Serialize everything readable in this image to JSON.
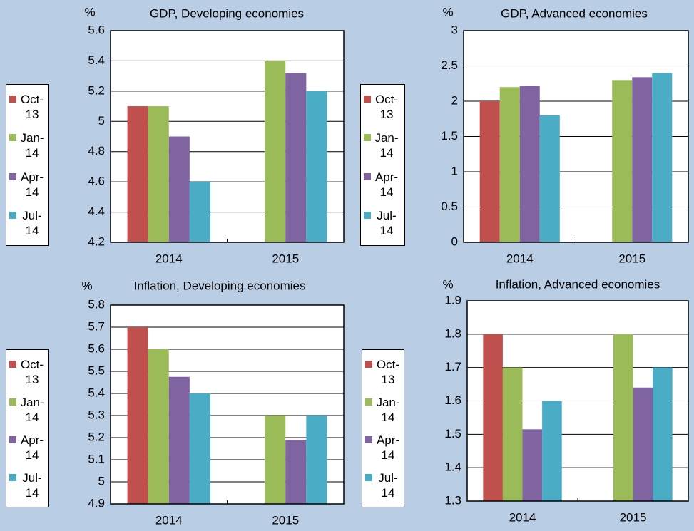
{
  "chart_data": [
    {
      "type": "bar",
      "title": "GDP, Developing economies",
      "ylabel": "%",
      "categories": [
        "2014",
        "2015"
      ],
      "series": [
        {
          "name": "Oct-13",
          "color": "#c0504d",
          "values": [
            5.1,
            null
          ]
        },
        {
          "name": "Jan-14",
          "color": "#9bbb59",
          "values": [
            5.1,
            5.4
          ]
        },
        {
          "name": "Apr-14",
          "color": "#8064a2",
          "values": [
            4.9,
            5.32
          ]
        },
        {
          "name": "Jul-14",
          "color": "#4bacc6",
          "values": [
            4.6,
            5.2
          ]
        }
      ],
      "ylim": [
        4.2,
        5.6
      ],
      "yticks": [
        4.2,
        4.4,
        4.6,
        4.8,
        5,
        5.2,
        5.4,
        5.6
      ],
      "grid": true,
      "legend": "left"
    },
    {
      "type": "bar",
      "title": "GDP, Advanced economies",
      "ylabel": "%",
      "categories": [
        "2014",
        "2015"
      ],
      "series": [
        {
          "name": "Oct-13",
          "color": "#c0504d",
          "values": [
            2.0,
            null
          ]
        },
        {
          "name": "Jan-14",
          "color": "#9bbb59",
          "values": [
            2.2,
            2.3
          ]
        },
        {
          "name": "Apr-14",
          "color": "#8064a2",
          "values": [
            2.22,
            2.34
          ]
        },
        {
          "name": "Jul-14",
          "color": "#4bacc6",
          "values": [
            1.8,
            2.4
          ]
        }
      ],
      "ylim": [
        0,
        3
      ],
      "yticks": [
        0,
        0.5,
        1,
        1.5,
        2,
        2.5,
        3
      ],
      "grid": true,
      "legend": "left"
    },
    {
      "type": "bar",
      "title": "Inflation, Developing economies",
      "ylabel": "%",
      "categories": [
        "2014",
        "2015"
      ],
      "series": [
        {
          "name": "Oct-13",
          "color": "#c0504d",
          "values": [
            5.7,
            null
          ]
        },
        {
          "name": "Jan-14",
          "color": "#9bbb59",
          "values": [
            5.6,
            5.3
          ]
        },
        {
          "name": "Apr-14",
          "color": "#8064a2",
          "values": [
            5.475,
            5.19
          ]
        },
        {
          "name": "Jul-14",
          "color": "#4bacc6",
          "values": [
            5.4,
            5.3
          ]
        }
      ],
      "ylim": [
        4.9,
        5.8
      ],
      "yticks": [
        4.9,
        5,
        5.1,
        5.2,
        5.3,
        5.4,
        5.5,
        5.6,
        5.7,
        5.8
      ],
      "grid": true,
      "legend": "left"
    },
    {
      "type": "bar",
      "title": "Inflation, Advanced economies",
      "ylabel": "%",
      "categories": [
        "2014",
        "2015"
      ],
      "series": [
        {
          "name": "Oct-13",
          "color": "#c0504d",
          "values": [
            1.8,
            null
          ]
        },
        {
          "name": "Jan-14",
          "color": "#9bbb59",
          "values": [
            1.7,
            1.8
          ]
        },
        {
          "name": "Apr-14",
          "color": "#8064a2",
          "values": [
            1.515,
            1.64
          ]
        },
        {
          "name": "Jul-14",
          "color": "#4bacc6",
          "values": [
            1.6,
            1.7
          ]
        }
      ],
      "ylim": [
        1.3,
        1.9
      ],
      "yticks": [
        1.3,
        1.4,
        1.5,
        1.6,
        1.7,
        1.8,
        1.9
      ],
      "grid": true,
      "legend": "left"
    }
  ]
}
